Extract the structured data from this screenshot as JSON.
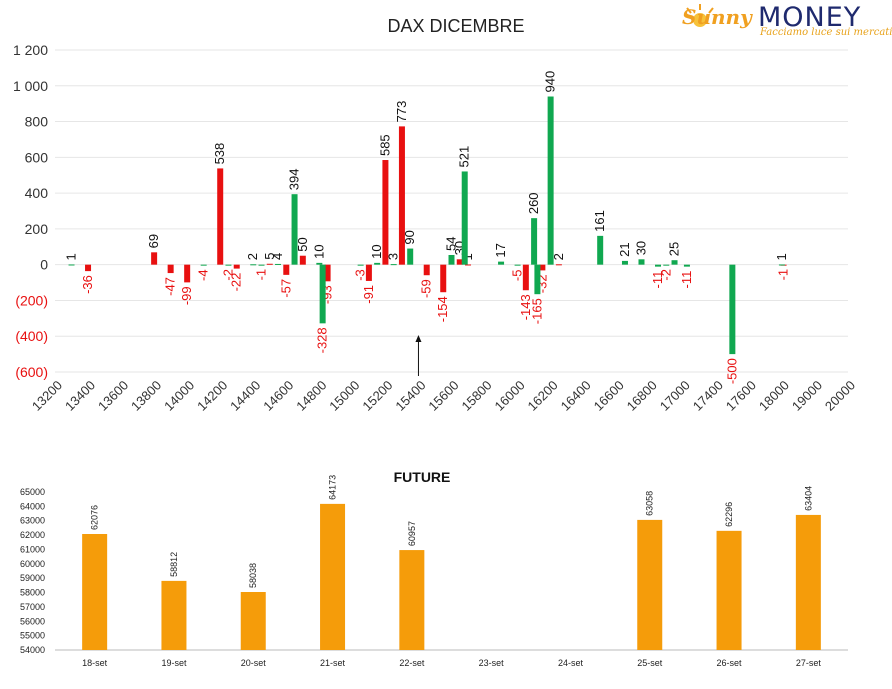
{
  "logo": {
    "brand_script": "Sunny",
    "brand_word": "MONEY",
    "tagline": "Facciamo luce sui mercati",
    "colors": {
      "orange": "#f0a020",
      "navy": "#1f2a6e"
    }
  },
  "chart_data": [
    {
      "type": "bar",
      "title": "DAX DICEMBRE",
      "xlabel": "",
      "ylabel": "",
      "ylim": [
        -600,
        1200
      ],
      "yticks": [
        "1 200",
        "1 000",
        "800",
        "600",
        "400",
        "200",
        "0",
        "(200)",
        "(400)",
        "(600)"
      ],
      "ytick_values": [
        1200,
        1000,
        800,
        600,
        400,
        200,
        0,
        -200,
        -400,
        -600
      ],
      "xticks": [
        "13200",
        "13400",
        "13600",
        "13800",
        "14000",
        "14200",
        "14400",
        "14600",
        "14800",
        "15000",
        "15200",
        "15400",
        "15600",
        "15800",
        "16000",
        "16200",
        "16400",
        "16600",
        "16800",
        "17000",
        "17400",
        "17600",
        "18000",
        "19000",
        "20000"
      ],
      "grid": true,
      "colors": {
        "red": "#e81010",
        "green": "#10a850",
        "label_red": "#e81010",
        "label_dark": "#111111"
      },
      "annotation_arrow": {
        "x_category": "15400",
        "direction": "up"
      },
      "series": [
        {
          "color_key": "red",
          "points": [
            {
              "x": 13400,
              "y": -36
            },
            {
              "x": 13800,
              "y": 69
            },
            {
              "x": 13900,
              "y": -47
            },
            {
              "x": 14000,
              "y": -99
            },
            {
              "x": 14200,
              "y": 538
            },
            {
              "x": 14300,
              "y": -22
            },
            {
              "x": 14500,
              "y": 5
            },
            {
              "x": 14600,
              "y": -57
            },
            {
              "x": 14700,
              "y": 50
            },
            {
              "x": 14850,
              "y": -93
            },
            {
              "x": 15100,
              "y": -91
            },
            {
              "x": 15200,
              "y": 585
            },
            {
              "x": 15300,
              "y": 773
            },
            {
              "x": 15450,
              "y": -59
            },
            {
              "x": 15550,
              "y": -154
            },
            {
              "x": 15650,
              "y": 30
            },
            {
              "x": 15700,
              "y": 1
            },
            {
              "x": 16050,
              "y": -143
            },
            {
              "x": 16150,
              "y": -32
            },
            {
              "x": 16250,
              "y": 2
            },
            {
              "x": 18050,
              "y": -1
            }
          ]
        },
        {
          "color_key": "green",
          "points": [
            {
              "x": 13300,
              "y": 1
            },
            {
              "x": 14100,
              "y": -4
            },
            {
              "x": 14250,
              "y": -2
            },
            {
              "x": 14400,
              "y": 2
            },
            {
              "x": 14450,
              "y": -1
            },
            {
              "x": 14550,
              "y": 4
            },
            {
              "x": 14650,
              "y": 394
            },
            {
              "x": 14800,
              "y": 10
            },
            {
              "x": 14820,
              "y": -328
            },
            {
              "x": 15050,
              "y": -3
            },
            {
              "x": 15150,
              "y": 10
            },
            {
              "x": 15250,
              "y": 3
            },
            {
              "x": 15350,
              "y": 90
            },
            {
              "x": 15600,
              "y": 54
            },
            {
              "x": 15680,
              "y": 521
            },
            {
              "x": 15900,
              "y": 17
            },
            {
              "x": 16000,
              "y": -5
            },
            {
              "x": 16100,
              "y": 260
            },
            {
              "x": 16120,
              "y": -165
            },
            {
              "x": 16200,
              "y": 940
            },
            {
              "x": 16500,
              "y": 161
            },
            {
              "x": 16650,
              "y": 21
            },
            {
              "x": 16750,
              "y": 30
            },
            {
              "x": 16850,
              "y": -11
            },
            {
              "x": 16900,
              "y": -2
            },
            {
              "x": 16950,
              "y": 25
            },
            {
              "x": 17050,
              "y": -11
            },
            {
              "x": 17500,
              "y": -500
            },
            {
              "x": 18000,
              "y": 1
            }
          ]
        }
      ]
    },
    {
      "type": "bar",
      "title": "FUTURE",
      "xlabel": "",
      "ylabel": "",
      "ylim": [
        54000,
        65000
      ],
      "yticks": [
        "65000",
        "64000",
        "63000",
        "62000",
        "61000",
        "60000",
        "59000",
        "58000",
        "57000",
        "56000",
        "55000",
        "54000"
      ],
      "ytick_values": [
        65000,
        64000,
        63000,
        62000,
        61000,
        60000,
        59000,
        58000,
        57000,
        56000,
        55000,
        54000
      ],
      "categories": [
        "18-set",
        "19-set",
        "20-set",
        "21-set",
        "22-set",
        "23-set",
        "24-set",
        "25-set",
        "26-set",
        "27-set"
      ],
      "values": [
        62076,
        58812,
        58038,
        64173,
        60957,
        null,
        null,
        63058,
        62296,
        63404
      ],
      "labels": [
        "62076",
        "58812",
        "58038",
        "64173",
        "60957",
        "",
        "",
        "63058",
        "62296",
        "63404"
      ],
      "grid": false,
      "colors": {
        "bar": "#f59c0a"
      }
    }
  ]
}
